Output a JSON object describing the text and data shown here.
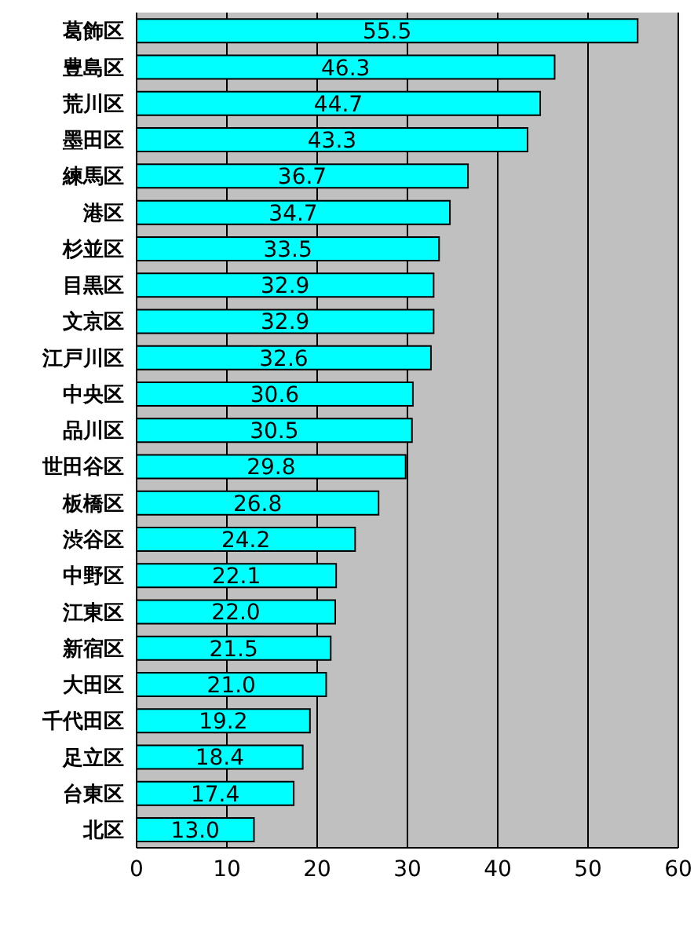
{
  "chart_data": {
    "type": "bar",
    "orientation": "horizontal",
    "categories": [
      "葛飾区",
      "豊島区",
      "荒川区",
      "墨田区",
      "練馬区",
      "港区",
      "杉並区",
      "目黒区",
      "文京区",
      "江戸川区",
      "中央区",
      "品川区",
      "世田谷区",
      "板橋区",
      "渋谷区",
      "中野区",
      "江東区",
      "新宿区",
      "大田区",
      "千代田区",
      "足立区",
      "台東区",
      "北区"
    ],
    "values": [
      55.5,
      46.3,
      44.7,
      43.3,
      36.7,
      34.7,
      33.5,
      32.9,
      32.9,
      32.6,
      30.6,
      30.5,
      29.8,
      26.8,
      24.2,
      22.1,
      22.0,
      21.5,
      21.0,
      19.2,
      18.4,
      17.4,
      13.0
    ],
    "value_labels": [
      "55.5",
      "46.3",
      "44.7",
      "43.3",
      "36.7",
      "34.7",
      "33.5",
      "32.9",
      "32.9",
      "32.6",
      "30.6",
      "30.5",
      "29.8",
      "26.8",
      "24.2",
      "22.1",
      "22.0",
      "21.5",
      "21.0",
      "19.2",
      "18.4",
      "17.4",
      "13.0"
    ],
    "color": "#00ffff",
    "xlim": [
      0,
      60
    ],
    "xticks": [
      0,
      10,
      20,
      30,
      40,
      50,
      60
    ],
    "grid": "x"
  }
}
